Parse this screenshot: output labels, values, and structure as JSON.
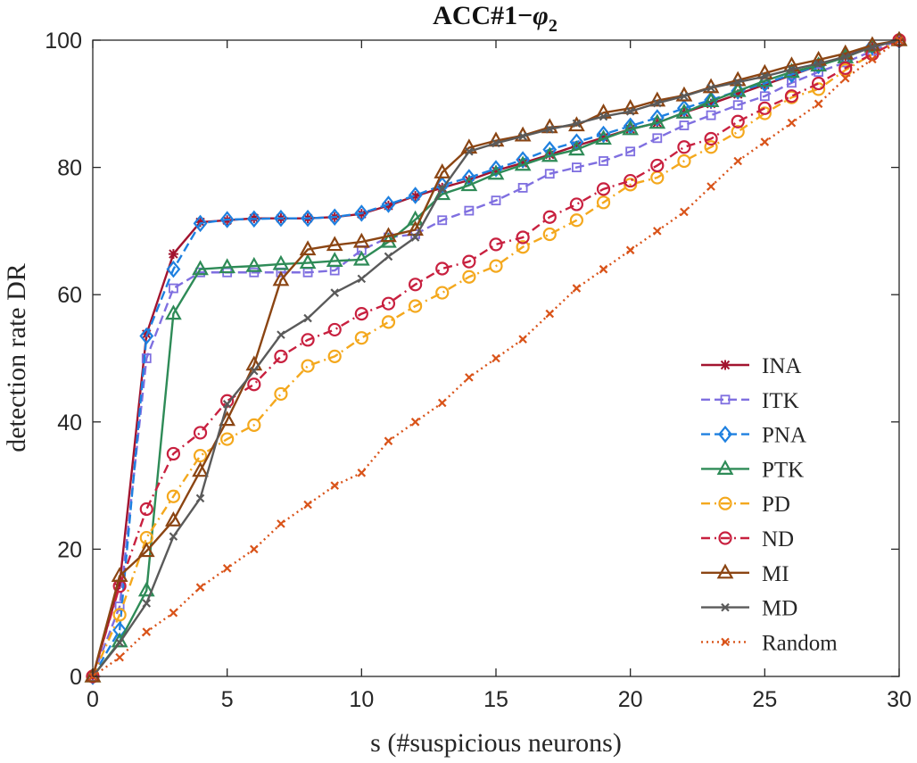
{
  "chart_data": {
    "type": "line",
    "title": {
      "main": "ACC#1−",
      "sym": "φ",
      "sub": "2"
    },
    "xlabel": "s (#suspicious neurons)",
    "ylabel": "detection rate DR",
    "xlim": [
      0,
      30
    ],
    "ylim": [
      0,
      100
    ],
    "xticks": [
      0,
      5,
      10,
      15,
      20,
      25,
      30
    ],
    "yticks": [
      0,
      20,
      40,
      60,
      80,
      100
    ],
    "grid": false,
    "legend_position": "lower-right",
    "series": [
      {
        "name": "INA",
        "color": "#a2142f",
        "marker": "asterisk",
        "dash": "solid",
        "x": [
          0,
          1,
          2,
          3,
          4,
          5,
          6,
          7,
          8,
          9,
          10,
          11,
          12,
          13,
          14,
          15,
          16,
          17,
          18,
          19,
          20,
          21,
          22,
          23,
          24,
          25,
          26,
          27,
          28,
          29,
          30
        ],
        "y": [
          0,
          14.5,
          53.8,
          66.4,
          71.4,
          71.7,
          72,
          72,
          72,
          72.2,
          72.7,
          74,
          75.5,
          76.8,
          78,
          79.5,
          80.7,
          82,
          83.4,
          84.7,
          86,
          87,
          88.6,
          90,
          91.5,
          93,
          94.5,
          96,
          97.5,
          99,
          100
        ]
      },
      {
        "name": "ITK",
        "color": "#7f6fe0",
        "marker": "square",
        "dash": "dashed",
        "x": [
          0,
          1,
          2,
          3,
          4,
          5,
          6,
          7,
          8,
          9,
          10,
          11,
          12,
          13,
          14,
          15,
          16,
          17,
          18,
          19,
          20,
          21,
          22,
          23,
          24,
          25,
          26,
          27,
          28,
          29,
          30
        ],
        "y": [
          0,
          11,
          50,
          61,
          63.5,
          63.5,
          63.5,
          63.5,
          63.5,
          63.8,
          67,
          69,
          69.5,
          71.7,
          73.2,
          74.8,
          76.8,
          79,
          80,
          81,
          82.5,
          84.6,
          86.6,
          88.2,
          89.8,
          91.2,
          93.3,
          95,
          96.5,
          98.3,
          100
        ]
      },
      {
        "name": "PNA",
        "color": "#1e80e0",
        "marker": "diamond",
        "dash": "dashed",
        "x": [
          0,
          1,
          2,
          3,
          4,
          5,
          6,
          7,
          8,
          9,
          10,
          11,
          12,
          13,
          14,
          15,
          16,
          17,
          18,
          19,
          20,
          21,
          22,
          23,
          24,
          25,
          26,
          27,
          28,
          29,
          30
        ],
        "y": [
          0,
          7.3,
          53.5,
          64,
          71.2,
          71.8,
          71.9,
          72,
          72,
          72.2,
          72.8,
          74.2,
          75.6,
          77.2,
          78.4,
          79.8,
          81.2,
          82.8,
          84,
          85.2,
          86.5,
          87.8,
          89.3,
          90.6,
          92,
          93.2,
          94.6,
          96,
          97.4,
          99,
          100
        ]
      },
      {
        "name": "PTK",
        "color": "#2e8b57",
        "marker": "triangle",
        "dash": "solid",
        "x": [
          0,
          1,
          2,
          3,
          4,
          5,
          6,
          7,
          8,
          9,
          10,
          11,
          12,
          13,
          14,
          15,
          16,
          17,
          18,
          19,
          20,
          21,
          22,
          23,
          24,
          25,
          26,
          27,
          28,
          29,
          30
        ],
        "y": [
          0,
          5.5,
          13.5,
          57,
          64,
          64.3,
          64.5,
          64.8,
          65,
          65.3,
          65.5,
          68.3,
          71.8,
          75.8,
          77.2,
          79,
          80.4,
          81.8,
          82.8,
          84.5,
          86,
          87,
          88.6,
          90.4,
          92,
          93.6,
          95,
          96,
          97.3,
          99,
          100
        ]
      },
      {
        "name": "PD",
        "color": "#f4a81d",
        "marker": "circle",
        "dash": "dashdot",
        "x": [
          0,
          1,
          2,
          3,
          4,
          5,
          6,
          7,
          8,
          9,
          10,
          11,
          12,
          13,
          14,
          15,
          16,
          17,
          18,
          19,
          20,
          21,
          22,
          23,
          24,
          25,
          26,
          27,
          28,
          29,
          30
        ],
        "y": [
          0,
          9.7,
          21.8,
          28.3,
          34.7,
          37.3,
          39.5,
          44.4,
          48.8,
          50.3,
          53.2,
          55.7,
          58.2,
          60.3,
          62.8,
          64.5,
          67.5,
          69.5,
          71.7,
          74.5,
          77.3,
          78.4,
          81,
          83.2,
          85.6,
          88.5,
          91,
          92.3,
          95.3,
          97.8,
          100
        ]
      },
      {
        "name": "ND",
        "color": "#c8203f",
        "marker": "circle",
        "dash": "dashdot",
        "x": [
          0,
          1,
          2,
          3,
          4,
          5,
          6,
          7,
          8,
          9,
          10,
          11,
          12,
          13,
          14,
          15,
          16,
          17,
          18,
          19,
          20,
          21,
          22,
          23,
          24,
          25,
          26,
          27,
          28,
          29,
          30
        ],
        "y": [
          0,
          14.2,
          26.3,
          35,
          38.3,
          43.3,
          45.9,
          50.3,
          52.9,
          54.5,
          57,
          58.6,
          61.6,
          64.1,
          65.2,
          67.9,
          69,
          72.2,
          74.2,
          76.6,
          77.9,
          80.3,
          83.2,
          84.5,
          87.2,
          89.3,
          91.2,
          93.2,
          95.6,
          97.8,
          100
        ]
      },
      {
        "name": "MI",
        "color": "#8b4513",
        "marker": "triangle",
        "dash": "solid",
        "x": [
          0,
          1,
          2,
          3,
          4,
          5,
          6,
          7,
          8,
          9,
          10,
          11,
          12,
          13,
          14,
          15,
          16,
          17,
          18,
          19,
          20,
          21,
          22,
          23,
          24,
          25,
          26,
          27,
          28,
          29,
          30
        ],
        "y": [
          0,
          15.8,
          19.7,
          24.5,
          32.3,
          40.3,
          49,
          62.3,
          67.1,
          67.8,
          68.3,
          69.2,
          70.2,
          79.2,
          83.1,
          84.2,
          85,
          86.3,
          86.6,
          88.6,
          89.3,
          90.5,
          91.3,
          92.6,
          93.7,
          94.8,
          96,
          96.9,
          97.9,
          99.2,
          100
        ]
      },
      {
        "name": "MD",
        "color": "#5a5a5a",
        "marker": "x",
        "dash": "solid",
        "x": [
          0,
          1,
          2,
          3,
          4,
          5,
          6,
          7,
          8,
          9,
          10,
          11,
          12,
          13,
          14,
          15,
          16,
          17,
          18,
          19,
          20,
          21,
          22,
          23,
          24,
          25,
          26,
          27,
          28,
          29,
          30
        ],
        "y": [
          0,
          5.3,
          11.5,
          22,
          28,
          42.8,
          48,
          53.7,
          56.3,
          60.3,
          62.5,
          66,
          69,
          76.6,
          82.5,
          83.8,
          84.9,
          86,
          86.9,
          88,
          88.8,
          90.1,
          91.2,
          92.5,
          93.4,
          94.3,
          95.4,
          96.3,
          97.4,
          98.9,
          100
        ]
      },
      {
        "name": "Random",
        "color": "#d95319",
        "marker": "x",
        "dash": "dotted",
        "x": [
          0,
          1,
          2,
          3,
          4,
          5,
          6,
          7,
          8,
          9,
          10,
          11,
          12,
          13,
          14,
          15,
          16,
          17,
          18,
          19,
          20,
          21,
          22,
          23,
          24,
          25,
          26,
          27,
          28,
          29,
          30
        ],
        "y": [
          0,
          3,
          7,
          10,
          14,
          17,
          20,
          24,
          27,
          30,
          32,
          37,
          40,
          43,
          47,
          50,
          53,
          57,
          61,
          64,
          67,
          70,
          73,
          77,
          81,
          84,
          87,
          90,
          94,
          97,
          100
        ]
      }
    ]
  }
}
